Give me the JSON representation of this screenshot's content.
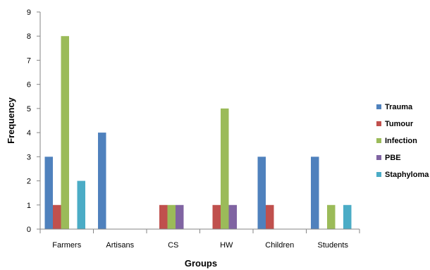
{
  "chart_data": {
    "type": "bar",
    "categories": [
      "Farmers",
      "Artisans",
      "CS",
      "HW",
      "Children",
      "Students"
    ],
    "series": [
      {
        "name": "Trauma",
        "values": [
          3,
          4,
          0,
          0,
          3,
          3
        ],
        "color": "#4F81BD"
      },
      {
        "name": "Tumour",
        "values": [
          1,
          0,
          1,
          1,
          1,
          0
        ],
        "color": "#C0504D"
      },
      {
        "name": "Infection",
        "values": [
          8,
          0,
          1,
          5,
          0,
          1
        ],
        "color": "#9BBB59"
      },
      {
        "name": "PBE",
        "values": [
          0,
          0,
          1,
          1,
          0,
          0
        ],
        "color": "#8064A2"
      },
      {
        "name": "Staphyloma",
        "values": [
          2,
          0,
          0,
          0,
          0,
          1
        ],
        "color": "#4BACC6"
      }
    ],
    "title": "",
    "xlabel": "Groups",
    "ylabel": "Frequency",
    "ylim": [
      0,
      9
    ],
    "yticks": [
      "0",
      "1",
      "2",
      "3",
      "4",
      "5",
      "6",
      "7",
      "8",
      "9"
    ],
    "grid": false,
    "legend_position": "right"
  }
}
